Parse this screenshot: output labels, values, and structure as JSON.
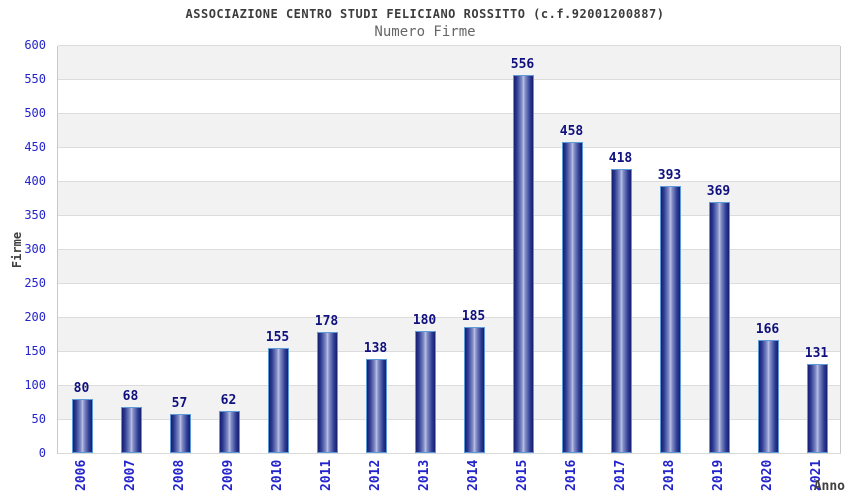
{
  "header": {
    "title": "ASSOCIAZIONE CENTRO STUDI FELICIANO ROSSITTO (c.f.92001200887)",
    "subtitle": "Numero Firme"
  },
  "chart_data": {
    "type": "bar",
    "title": "ASSOCIAZIONE CENTRO STUDI FELICIANO ROSSITTO (c.f.92001200887)",
    "subtitle": "Numero Firme",
    "xlabel": "Anno",
    "ylabel": "Firme",
    "categories": [
      "2006",
      "2007",
      "2008",
      "2009",
      "2010",
      "2011",
      "2012",
      "2013",
      "2014",
      "2015",
      "2016",
      "2017",
      "2018",
      "2019",
      "2020",
      "2021"
    ],
    "values": [
      80,
      68,
      57,
      62,
      155,
      178,
      138,
      180,
      185,
      556,
      458,
      418,
      393,
      369,
      166,
      131
    ],
    "ylim": [
      0,
      600
    ],
    "ytick_step": 50,
    "grid": "horizontal-bands-alternating",
    "legend": "none",
    "colors": {
      "bar_border": "#5e9ad8",
      "bar_dark": "#17206e",
      "bar_light": "#bcc3e8",
      "value_label": "#10107e",
      "tick_label": "#2424cc",
      "band_gray": "#f2f2f2",
      "band_white": "#ffffff",
      "gridline": "#dcdcdc",
      "title": "#3c3c3c",
      "subtitle": "#666666"
    }
  }
}
